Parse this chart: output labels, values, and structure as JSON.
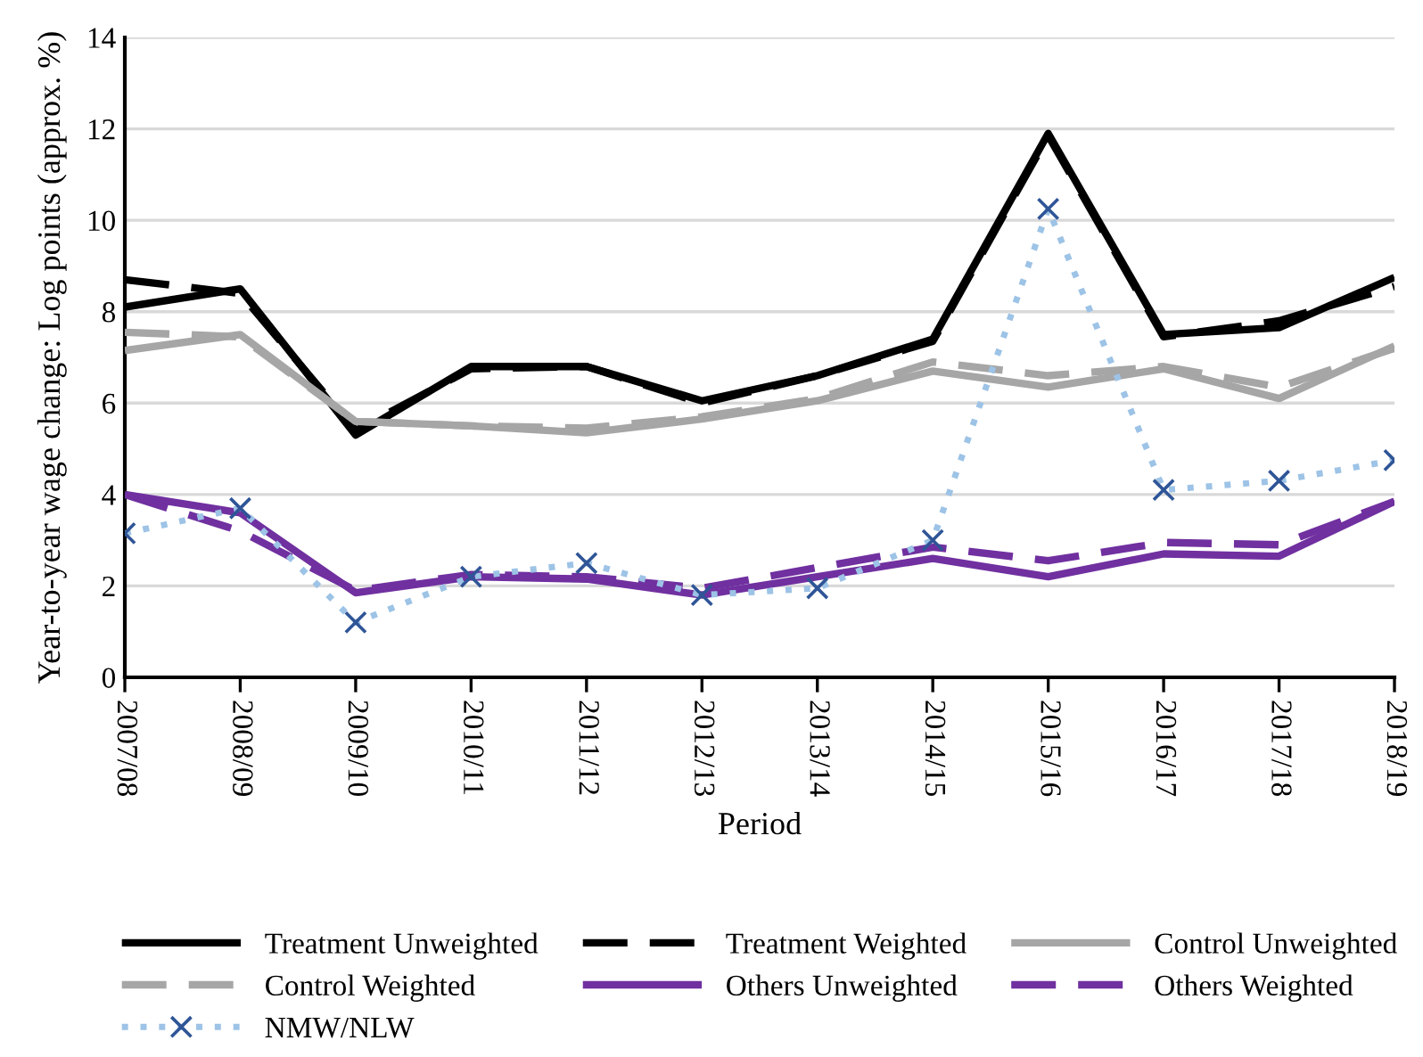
{
  "chart_data": {
    "type": "line",
    "xlabel": "Period",
    "ylabel": "Year-to-year wage change: Log points (approx. %)",
    "categories": [
      "2007/08",
      "2008/09",
      "2009/10",
      "2010/11",
      "2011/12",
      "2012/13",
      "2013/14",
      "2014/15",
      "2015/16",
      "2016/17",
      "2017/18",
      "2018/19"
    ],
    "series": [
      {
        "name": "Treatment Unweighted",
        "color": "#000000",
        "line_style": "solid",
        "marker": "none",
        "values": [
          8.1,
          8.5,
          5.3,
          6.8,
          6.8,
          6.05,
          6.6,
          7.4,
          11.9,
          7.5,
          7.65,
          8.75
        ]
      },
      {
        "name": "Treatment Weighted",
        "color": "#000000",
        "line_style": "dashed",
        "marker": "none",
        "values": [
          8.7,
          8.4,
          5.4,
          6.75,
          6.8,
          6.0,
          6.6,
          7.35,
          11.85,
          7.45,
          7.8,
          8.55
        ]
      },
      {
        "name": "Control Unweighted",
        "color": "#a6a6a6",
        "line_style": "solid",
        "marker": "none",
        "values": [
          7.15,
          7.5,
          5.6,
          5.5,
          5.35,
          5.65,
          6.05,
          6.7,
          6.35,
          6.75,
          6.1,
          7.25
        ]
      },
      {
        "name": "Control Weighted",
        "color": "#a6a6a6",
        "line_style": "dashed",
        "marker": "none",
        "values": [
          7.55,
          7.45,
          5.6,
          5.5,
          5.45,
          5.7,
          6.1,
          6.9,
          6.6,
          6.8,
          6.35,
          7.2
        ]
      },
      {
        "name": "Others Unweighted",
        "color": "#7030a0",
        "line_style": "solid",
        "marker": "none",
        "values": [
          4.0,
          3.6,
          1.85,
          2.2,
          2.15,
          1.8,
          2.2,
          2.6,
          2.2,
          2.7,
          2.65,
          3.85
        ]
      },
      {
        "name": "Others Weighted",
        "color": "#7030a0",
        "line_style": "dashed",
        "marker": "none",
        "values": [
          4.0,
          3.2,
          1.9,
          2.25,
          2.2,
          1.95,
          2.4,
          2.85,
          2.55,
          2.95,
          2.9,
          3.85
        ]
      },
      {
        "name": "NMW/NLW",
        "color": "#9dc3e6",
        "line_style": "dotted",
        "marker": "cross",
        "values": [
          3.15,
          3.7,
          1.2,
          2.2,
          2.5,
          1.8,
          1.95,
          3.0,
          10.25,
          4.1,
          4.3,
          4.75
        ]
      }
    ],
    "ylim": [
      0,
      14
    ],
    "yticks": [
      0,
      2,
      4,
      6,
      8,
      10,
      12,
      14
    ],
    "grid": "y",
    "legend": "bottom"
  }
}
